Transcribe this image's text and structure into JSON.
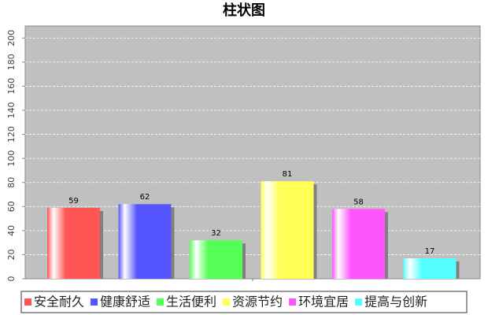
{
  "chart_data": {
    "type": "bar",
    "title": "柱状图",
    "categories": [
      null
    ],
    "series": [
      {
        "name": "安全耐久",
        "color": "#ff5555",
        "values": [
          59
        ]
      },
      {
        "name": "健康舒适",
        "color": "#5555ff",
        "values": [
          62
        ]
      },
      {
        "name": "生活便利",
        "color": "#55ff55",
        "values": [
          32
        ]
      },
      {
        "name": "资源节约",
        "color": "#ffff55",
        "values": [
          81
        ]
      },
      {
        "name": "环境宜居",
        "color": "#ff55ff",
        "values": [
          58
        ]
      },
      {
        "name": "提高与创新",
        "color": "#55ffff",
        "values": [
          17
        ]
      }
    ],
    "ylim": [
      0,
      210
    ],
    "yticks": [
      0,
      20,
      40,
      60,
      80,
      100,
      120,
      140,
      160,
      180,
      200
    ],
    "grid": true
  }
}
